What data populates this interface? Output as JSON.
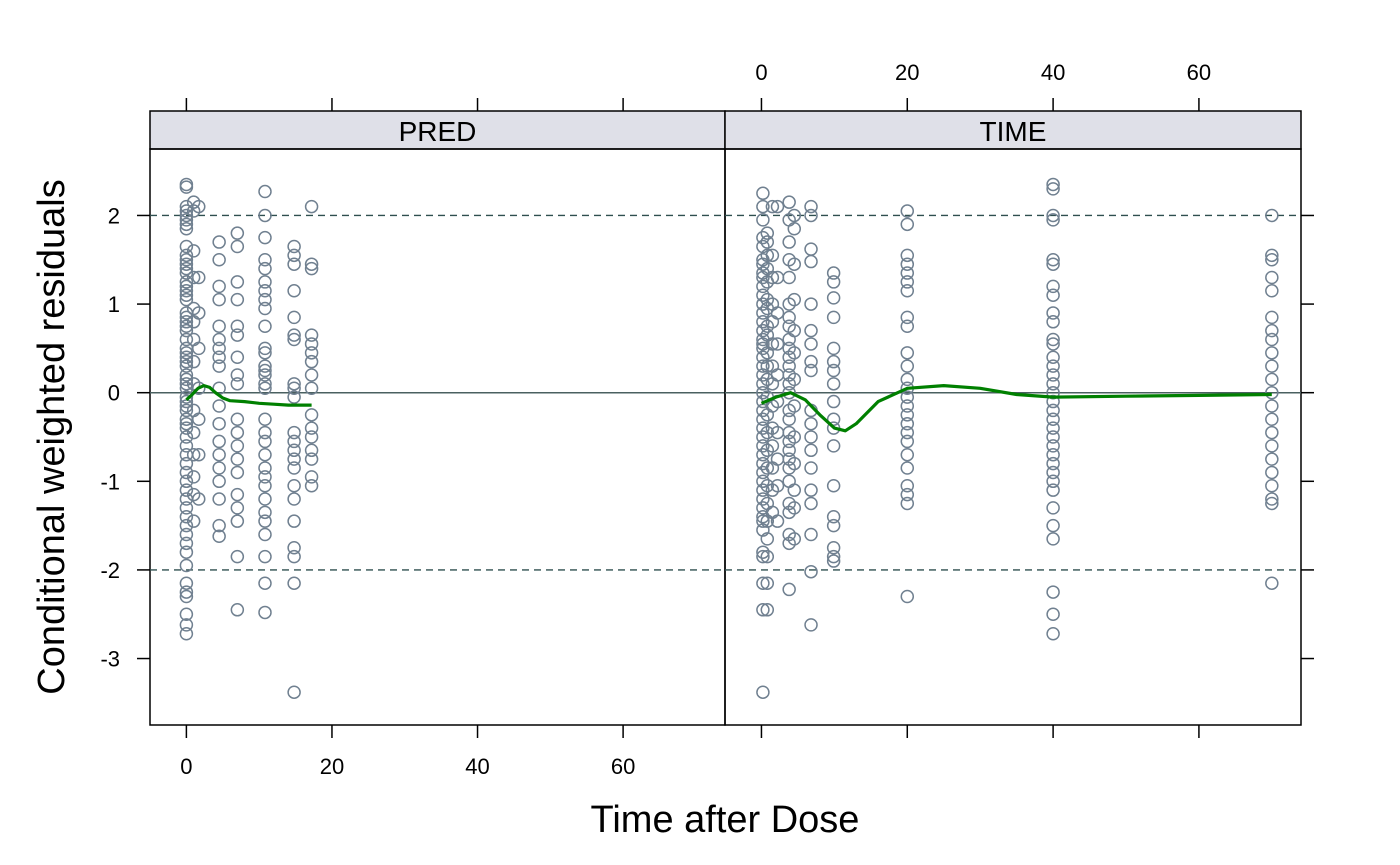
{
  "chart_data": {
    "type": "scatter",
    "xlabel": "Time after Dose",
    "ylabel": "Conditional weighted residuals",
    "xlim": [
      -5,
      74
    ],
    "ylim": [
      -3.75,
      2.75
    ],
    "x_ticks": [
      0,
      20,
      40,
      60
    ],
    "y_ticks": [
      -3,
      -2,
      -1,
      0,
      1,
      2
    ],
    "x_tick_labels": [
      "0",
      "20",
      "40",
      "60"
    ],
    "y_tick_labels": [
      "-3",
      "-2",
      "-1",
      "0",
      "1",
      "2"
    ],
    "reference_lines": {
      "solid": 0,
      "dashed": [
        -2,
        2
      ]
    },
    "colors": {
      "points": "#708090",
      "smooth": "#008000",
      "strip_bg": "#dfe0e8",
      "ref_solid": "#4a6060",
      "ref_dashed": "#2f4f4f"
    },
    "panels": [
      {
        "strip": "PRED",
        "points": [
          {
            "x": 0,
            "ys": [
              2.35,
              2.32,
              2.1,
              2.05,
              2.0,
              1.95,
              1.9,
              1.85,
              1.65,
              1.55,
              1.5,
              1.45,
              1.4,
              1.35,
              1.25,
              1.2,
              1.15,
              1.1,
              1.05,
              0.9,
              0.85,
              0.8,
              0.75,
              0.7,
              0.6,
              0.5,
              0.45,
              0.4,
              0.35,
              0.3,
              0.2,
              0.15,
              0.1,
              0.05,
              -0.05,
              -0.1,
              -0.15,
              -0.2,
              -0.3,
              -0.35,
              -0.4,
              -0.5,
              -0.6,
              -0.7,
              -0.8,
              -0.9,
              -1.0,
              -1.1,
              -1.2,
              -1.3,
              -1.4,
              -1.5,
              -1.6,
              -1.7,
              -1.8,
              -1.95,
              -2.15,
              -2.25,
              -2.3,
              -2.5,
              -2.62,
              -2.72
            ]
          },
          {
            "x": 1,
            "ys": [
              2.15,
              2.05,
              1.6,
              1.3,
              0.95,
              0.8,
              0.6,
              0.35,
              0.1,
              -0.2,
              -0.45,
              -0.7,
              -0.95,
              -1.15,
              -1.45
            ]
          },
          {
            "x": 1.7,
            "ys": [
              2.1,
              1.3,
              0.9,
              0.5,
              0.05,
              -0.3,
              -0.7,
              -1.2
            ]
          },
          {
            "x": 4.5,
            "ys": [
              1.7,
              1.5,
              1.2,
              1.05,
              0.75,
              0.6,
              0.5,
              0.4,
              0.3,
              0.05,
              -0.15,
              -0.35,
              -0.55,
              -0.7,
              -0.85,
              -1.0,
              -1.2,
              -1.5,
              -1.62
            ]
          },
          {
            "x": 7,
            "ys": [
              1.8,
              1.65,
              1.25,
              1.05,
              0.75,
              0.65,
              0.4,
              0.2,
              0.1,
              -0.3,
              -0.45,
              -0.6,
              -0.75,
              -0.9,
              -1.15,
              -1.3,
              -1.45,
              -1.85,
              -2.45
            ]
          },
          {
            "x": 10.8,
            "ys": [
              2.27,
              2.0,
              1.75,
              1.5,
              1.4,
              1.25,
              1.15,
              1.05,
              0.95,
              0.75,
              0.5,
              0.45,
              0.3,
              0.25,
              0.2,
              0.1,
              0.05,
              -0.3,
              -0.45,
              -0.55,
              -0.7,
              -0.85,
              -0.95,
              -1.05,
              -1.2,
              -1.35,
              -1.45,
              -1.6,
              -1.85,
              -2.15,
              -2.48
            ]
          },
          {
            "x": 14.8,
            "ys": [
              1.65,
              1.55,
              1.45,
              1.15,
              0.85,
              0.65,
              0.6,
              0.1,
              0.05,
              -0.05,
              -0.45,
              -0.55,
              -0.65,
              -0.75,
              -0.85,
              -1.05,
              -1.2,
              -1.45,
              -1.75,
              -1.85,
              -2.15,
              -3.38
            ]
          },
          {
            "x": 17.2,
            "ys": [
              2.1,
              1.45,
              1.4,
              0.65,
              0.55,
              0.45,
              0.35,
              0.2,
              0.05,
              -0.25,
              -0.4,
              -0.5,
              -0.65,
              -0.75,
              -0.95,
              -1.05
            ]
          }
        ],
        "smooth": {
          "x": [
            0,
            0.8,
            1.6,
            2.4,
            3.2,
            4,
            5,
            6,
            8,
            10,
            12,
            14,
            16,
            17.2
          ],
          "y": [
            -0.08,
            -0.02,
            0.05,
            0.08,
            0.06,
            0.0,
            -0.06,
            -0.09,
            -0.1,
            -0.12,
            -0.13,
            -0.14,
            -0.14,
            -0.14
          ]
        }
      },
      {
        "strip": "TIME",
        "points": [
          {
            "x": 0.2,
            "ys": [
              2.25,
              2.1,
              1.95,
              1.75,
              1.65,
              1.5,
              1.45,
              1.35,
              1.3,
              1.2,
              1.1,
              1.0,
              0.9,
              0.8,
              0.7,
              0.6,
              0.55,
              0.5,
              0.4,
              0.3,
              0.2,
              0.1,
              0.0,
              -0.1,
              -0.2,
              -0.3,
              -0.4,
              -0.5,
              -0.6,
              -0.7,
              -0.8,
              -0.9,
              -1.0,
              -1.1,
              -1.2,
              -1.3,
              -1.4,
              -1.45,
              -1.55,
              -1.8,
              -1.85,
              -2.15,
              -2.45,
              -3.38
            ]
          },
          {
            "x": 0.8,
            "ys": [
              1.8,
              1.7,
              1.55,
              1.4,
              1.25,
              1.05,
              0.95,
              0.75,
              0.65,
              0.45,
              0.3,
              0.15,
              -0.05,
              -0.25,
              -0.45,
              -0.65,
              -0.85,
              -1.05,
              -1.25,
              -1.45,
              -1.65,
              -1.85,
              -2.15,
              -2.45
            ]
          },
          {
            "x": 1.5,
            "ys": [
              2.1,
              1.55,
              1.3,
              1.0,
              0.8,
              0.55,
              0.3,
              0.1,
              -0.15,
              -0.4,
              -0.6,
              -0.85,
              -1.1,
              -1.35
            ]
          },
          {
            "x": 2.2,
            "ys": [
              2.1,
              1.3,
              0.9,
              0.55,
              0.2,
              -0.1,
              -0.45,
              -0.75,
              -1.05,
              -1.45
            ]
          },
          {
            "x": 3.8,
            "ys": [
              2.15,
              1.95,
              1.7,
              1.5,
              1.3,
              1.0,
              0.85,
              0.75,
              0.6,
              0.5,
              0.4,
              0.3,
              0.2,
              0.1,
              0.0,
              -0.2,
              -0.3,
              -0.45,
              -0.55,
              -0.65,
              -0.75,
              -0.85,
              -1.0,
              -1.25,
              -1.35,
              -1.6,
              -1.7,
              -2.22
            ]
          },
          {
            "x": 4.5,
            "ys": [
              2.0,
              1.85,
              1.45,
              1.05,
              0.7,
              0.45,
              0.15,
              -0.15,
              -0.5,
              -0.8,
              -1.1,
              -1.3,
              -1.65
            ]
          },
          {
            "x": 6.8,
            "ys": [
              2.1,
              2.0,
              1.62,
              1.48,
              1.0,
              0.7,
              0.55,
              0.35,
              0.25,
              -0.2,
              -0.35,
              -0.5,
              -0.65,
              -0.85,
              -1.1,
              -1.25,
              -1.6,
              -2.02,
              -2.62
            ]
          },
          {
            "x": 9.9,
            "ys": [
              1.35,
              1.25,
              1.07,
              0.85,
              0.5,
              0.35,
              0.25,
              0.1,
              -0.1,
              -0.3,
              -0.4,
              -0.6,
              -1.05,
              -1.4,
              -1.5,
              -1.75,
              -1.85,
              -1.9
            ]
          },
          {
            "x": 20,
            "ys": [
              2.05,
              1.9,
              1.55,
              1.45,
              1.35,
              1.25,
              1.15,
              0.85,
              0.75,
              0.45,
              0.3,
              0.15,
              0.05,
              -0.05,
              -0.15,
              -0.25,
              -0.35,
              -0.45,
              -0.55,
              -0.7,
              -0.85,
              -1.05,
              -1.15,
              -1.25,
              -2.3
            ]
          },
          {
            "x": 40,
            "ys": [
              2.35,
              2.3,
              2.0,
              1.95,
              1.5,
              1.45,
              1.2,
              1.1,
              0.9,
              0.8,
              0.6,
              0.55,
              0.4,
              0.3,
              0.2,
              0.1,
              0.0,
              -0.1,
              -0.2,
              -0.3,
              -0.4,
              -0.5,
              -0.6,
              -0.7,
              -0.8,
              -0.9,
              -1.0,
              -1.1,
              -1.3,
              -1.5,
              -1.65,
              -2.25,
              -2.5,
              -2.72
            ]
          },
          {
            "x": 70,
            "ys": [
              2.0,
              1.55,
              1.5,
              1.3,
              1.15,
              0.85,
              0.7,
              0.6,
              0.45,
              0.3,
              0.15,
              0.0,
              -0.15,
              -0.3,
              -0.45,
              -0.6,
              -0.75,
              -0.9,
              -1.05,
              -1.2,
              -1.25,
              -2.15
            ]
          }
        ],
        "smooth": {
          "x": [
            0,
            2,
            4,
            6,
            8,
            10,
            11.5,
            13,
            16,
            20,
            25,
            30,
            35,
            40,
            50,
            60,
            70
          ],
          "y": [
            -0.12,
            -0.05,
            0.0,
            -0.08,
            -0.25,
            -0.4,
            -0.43,
            -0.35,
            -0.1,
            0.05,
            0.08,
            0.05,
            -0.02,
            -0.05,
            -0.04,
            -0.03,
            -0.02
          ]
        }
      }
    ]
  }
}
